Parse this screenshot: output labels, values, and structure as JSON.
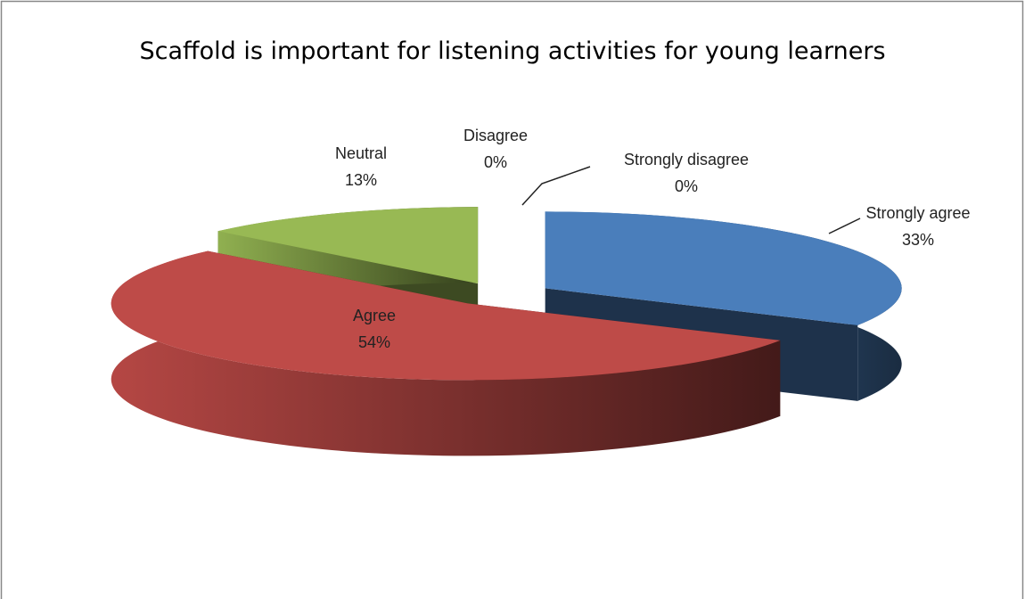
{
  "chart_data": {
    "type": "pie3d",
    "title": "Scaffold is important for listening activities for young learners",
    "categories": [
      "Strongly agree",
      "Agree",
      "Neutral",
      "Disagree",
      "Strongly disagree"
    ],
    "values": [
      33,
      54,
      13,
      0,
      0
    ],
    "value_labels": [
      "33%",
      "54%",
      "13%",
      "0%",
      "0%"
    ],
    "colors": [
      "#4a7ebb",
      "#be4b48",
      "#98b954",
      "#7d60a0",
      "#46aac5"
    ],
    "exploded": true
  }
}
